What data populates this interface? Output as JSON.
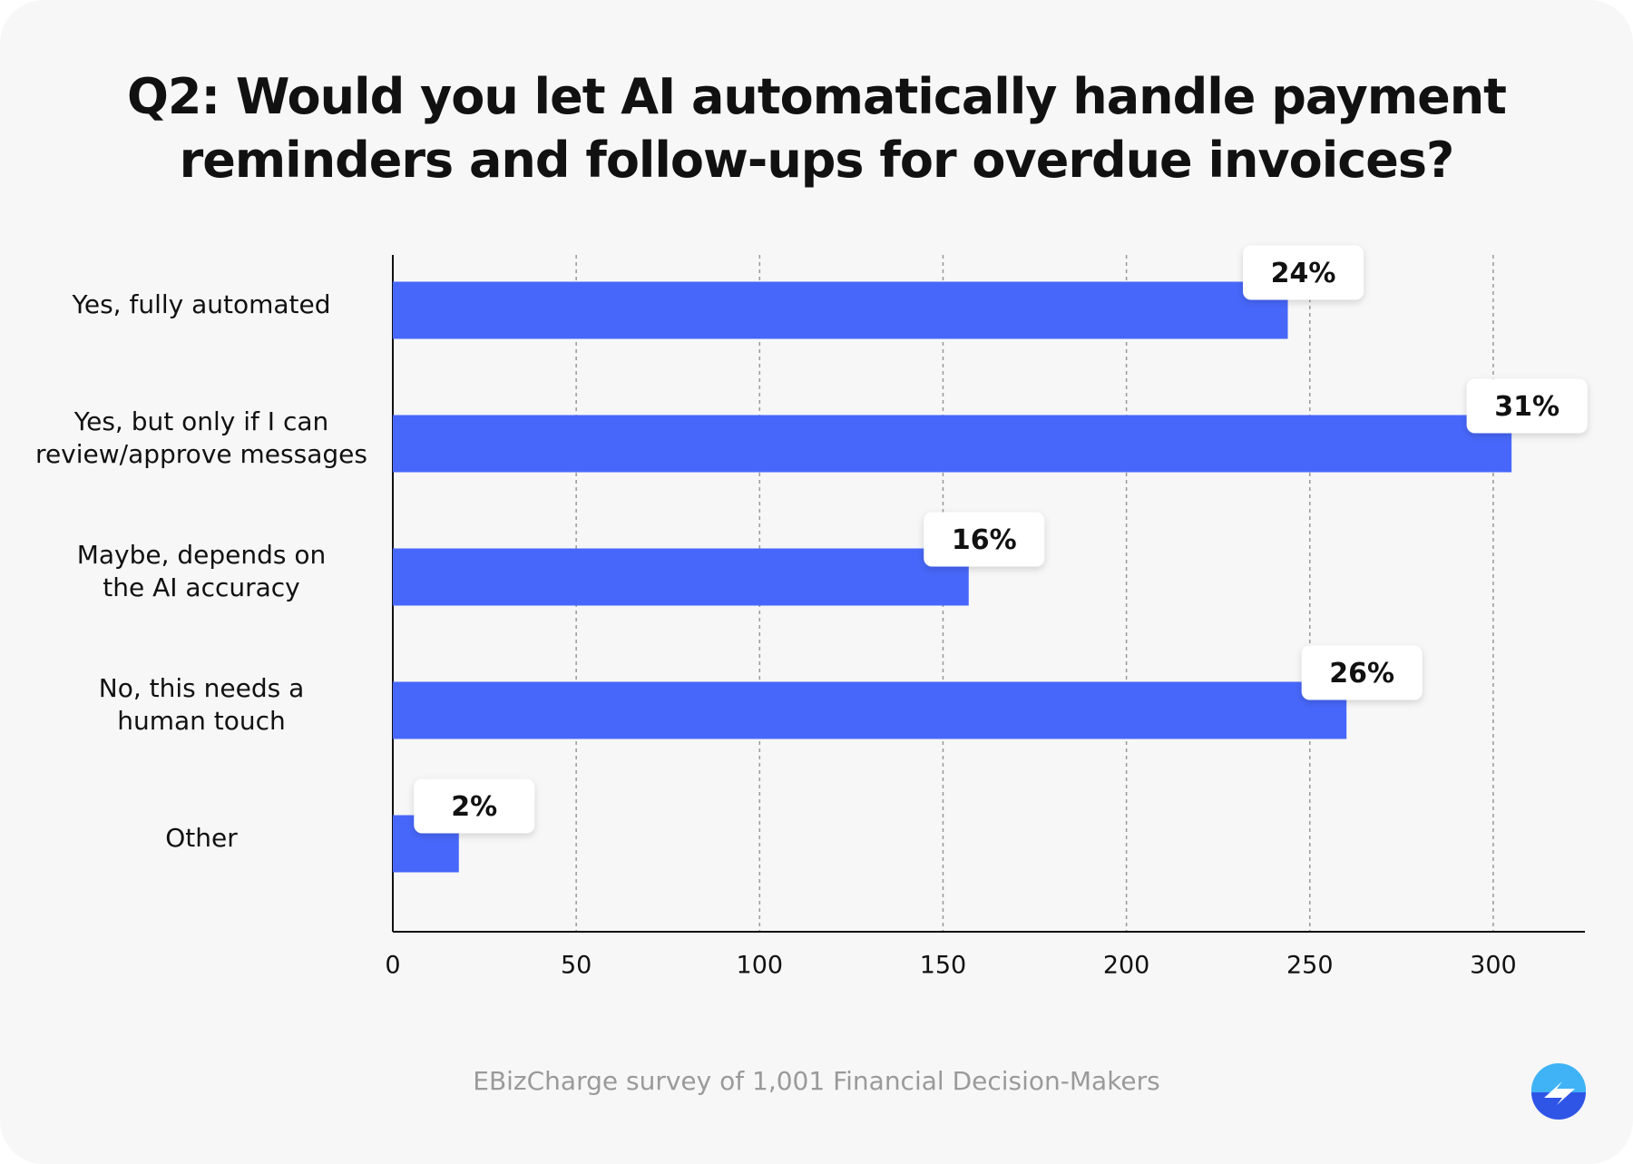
{
  "chart_data": {
    "type": "bar",
    "orientation": "horizontal",
    "title": "Q2: Would you let AI automatically handle payment\nreminders and follow-ups for overdue invoices?",
    "categories": [
      "Yes, fully automated",
      "Yes, but only if I can\nreview/approve messages",
      "Maybe, depends on\nthe AI accuracy",
      "No, this needs a\nhuman touch",
      "Other"
    ],
    "values": [
      244,
      305,
      157,
      260,
      18
    ],
    "value_labels": [
      "24%",
      "31%",
      "16%",
      "26%",
      "2%"
    ],
    "color": "#4767fa",
    "xlim": [
      0,
      325
    ],
    "xticks": [
      0,
      50,
      100,
      150,
      200,
      250,
      300
    ],
    "grid": true,
    "footnote": "EBizCharge survey of 1,001 Financial Decision-Makers"
  }
}
